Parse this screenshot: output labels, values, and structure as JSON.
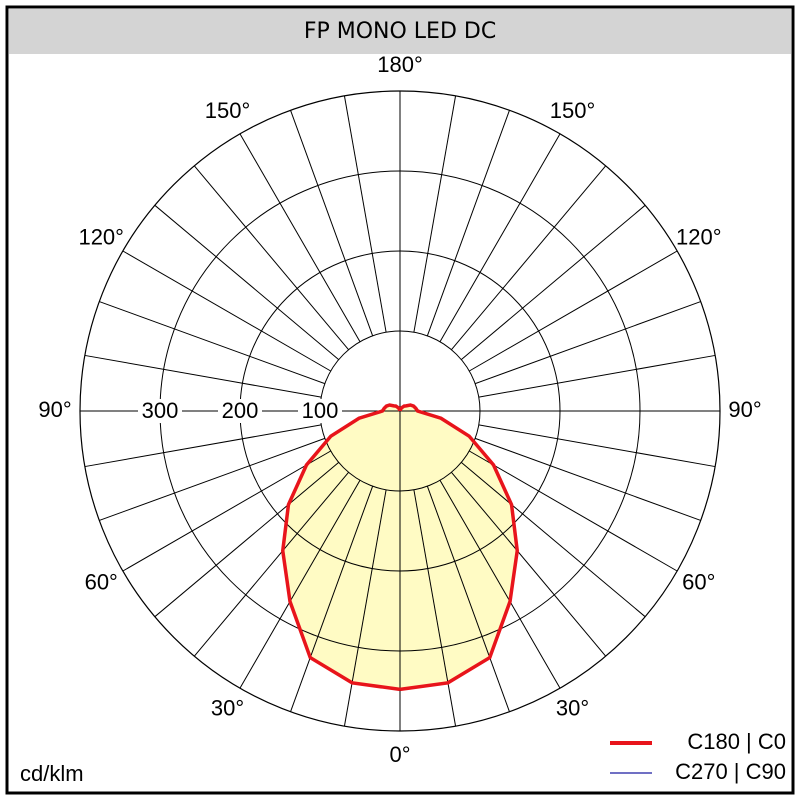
{
  "chart_data": {
    "type": "polar",
    "title": "FP MONO LED DC",
    "unit_label": "cd/klm",
    "angles": [
      0,
      10,
      20,
      30,
      40,
      50,
      60,
      70,
      80,
      90,
      100,
      110,
      120,
      130,
      140,
      150,
      160,
      170,
      180
    ],
    "series": [
      {
        "name": "C270 | C90",
        "color": "#1a1aa0",
        "fill": null,
        "values": [
          348,
          345,
          328,
          275,
          228,
          182,
          135,
          92,
          52,
          22,
          20,
          18,
          15,
          10,
          8,
          5,
          3,
          1,
          0
        ]
      },
      {
        "name": "C180 | C0",
        "color": "#e8141b",
        "fill": "#fffbc4",
        "values": [
          348,
          345,
          328,
          275,
          228,
          182,
          135,
          92,
          52,
          22,
          20,
          18,
          15,
          10,
          8,
          5,
          3,
          1,
          0
        ]
      }
    ],
    "rlim": [
      0,
      400
    ],
    "rticks": [
      100,
      200,
      300
    ],
    "angle_ticks": [
      {
        "value": 0,
        "label": "0°"
      },
      {
        "value": 30,
        "label": "30°"
      },
      {
        "value": 60,
        "label": "60°"
      },
      {
        "value": 90,
        "label": "90°"
      },
      {
        "value": 120,
        "label": "120°"
      },
      {
        "value": 150,
        "label": "150°"
      },
      {
        "value": 180,
        "label": "180°"
      }
    ],
    "grid": true,
    "legend": "bottom-right"
  }
}
